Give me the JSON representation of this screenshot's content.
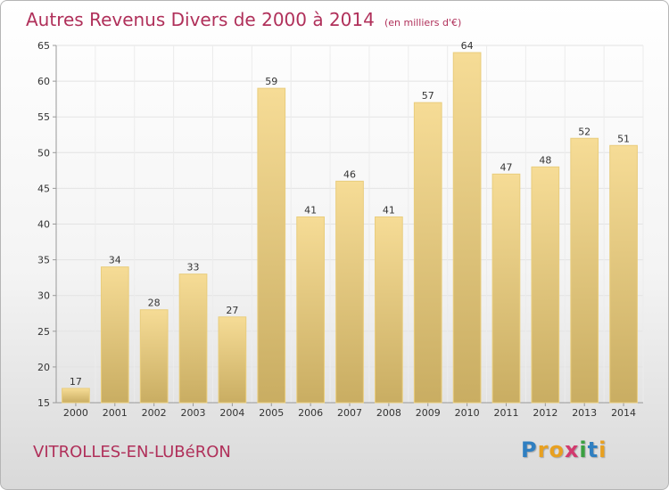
{
  "title": "Autres Revenus Divers de 2000 à 2014",
  "subtitle": "(en milliers d'€)",
  "commune": "VITROLLES-EN-LUBéRON",
  "logo": {
    "letters": [
      "P",
      "r",
      "o",
      "x",
      "i",
      "t",
      "i"
    ],
    "colors": [
      "#2f7fc1",
      "#e8a020",
      "#e8a020",
      "#d23a6e",
      "#3aa040",
      "#2f7fc1",
      "#e8a020"
    ]
  },
  "colors": {
    "accent": "#b0305a",
    "bar_top": "#f6dc96",
    "bar_bottom": "#c9ad62",
    "bar_edge": "#e9cd7d"
  },
  "chart_data": {
    "type": "bar",
    "title": "Autres Revenus Divers de 2000 à 2014",
    "subtitle": "(en milliers d'€)",
    "categories": [
      "2000",
      "2001",
      "2002",
      "2003",
      "2004",
      "2005",
      "2006",
      "2007",
      "2008",
      "2009",
      "2010",
      "2011",
      "2012",
      "2013",
      "2014"
    ],
    "values": [
      17,
      34,
      28,
      33,
      27,
      59,
      41,
      46,
      41,
      57,
      64,
      47,
      48,
      52,
      51
    ],
    "xlabel": "",
    "ylabel": "",
    "ylim": [
      15,
      65
    ],
    "yticks": [
      15,
      20,
      25,
      30,
      35,
      40,
      45,
      50,
      55,
      60,
      65
    ],
    "grid": true,
    "data_labels": true
  }
}
